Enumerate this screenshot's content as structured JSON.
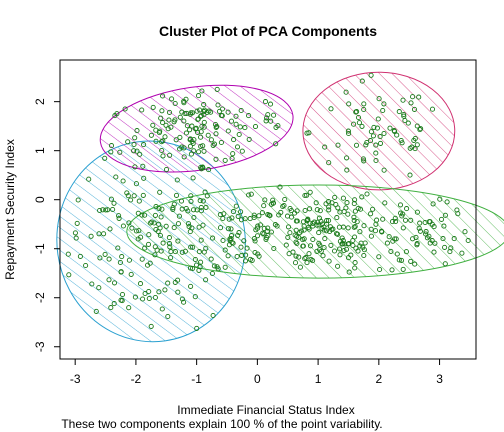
{
  "chart_data": {
    "type": "scatter",
    "title": "Cluster Plot of PCA Components",
    "xlabel": "Immediate Financial Status Index",
    "ylabel": "Repayment Security Index",
    "subtitle": "These two components explain 100 % of the point variability.",
    "xlim": [
      -3.25,
      3.6
    ],
    "ylim": [
      -3.25,
      2.85
    ],
    "x_ticks": [
      -3,
      -2,
      -1,
      0,
      1,
      2,
      3
    ],
    "y_ticks": [
      -3,
      -2,
      -1,
      0,
      1,
      2
    ],
    "x_tick_labels": [
      "-3",
      "-2",
      "-1",
      "0",
      "1",
      "2",
      "3"
    ],
    "y_tick_labels": [
      "-3",
      "-2",
      "-1",
      "0",
      "1",
      "2"
    ],
    "point_color": "#1a7a1a",
    "clusters": [
      {
        "color": "#2aa0d0",
        "center": [
          -1.75,
          -0.85
        ],
        "rx": 1.55,
        "ry": 2.05,
        "angle": 8,
        "n": 160
      },
      {
        "color": "#b000b0",
        "center": [
          -1.0,
          1.45
        ],
        "rx": 1.6,
        "ry": 0.85,
        "angle": 8,
        "n": 140
      },
      {
        "color": "#d03070",
        "center": [
          2.0,
          1.4
        ],
        "rx": 1.25,
        "ry": 1.2,
        "angle": 0,
        "n": 70
      },
      {
        "color": "#40b040",
        "center": [
          1.0,
          -0.65
        ],
        "rx": 3.15,
        "ry": 0.95,
        "angle": 0,
        "n": 330
      }
    ]
  }
}
